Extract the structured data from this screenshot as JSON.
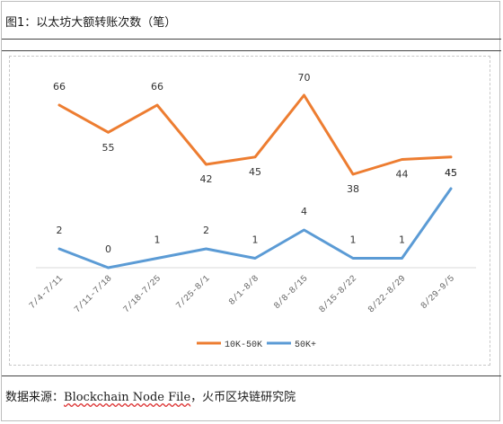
{
  "header": {
    "title": "图1：以太坊大额转账次数（笔）"
  },
  "footer": {
    "source_prefix": "数据来源：",
    "source_name": "Blockchain Node File",
    "source_suffix": "，火币区块链研究院"
  },
  "chart_data": {
    "type": "line",
    "title": "图1：以太坊大额转账次数（笔）",
    "xlabel": "",
    "ylabel": "",
    "categories": [
      "7/4-7/11",
      "7/11-7/18",
      "7/18-7/25",
      "7/25-8/1",
      "8/1-8/8",
      "8/8-8/15",
      "8/15-8/22",
      "8/22-8/29",
      "8/29-9/5"
    ],
    "series": [
      {
        "name": "10K-50K",
        "values": [
          66,
          55,
          66,
          42,
          45,
          70,
          38,
          44,
          45
        ],
        "color": "#ED7D31"
      },
      {
        "name": "50K+",
        "values": [
          2,
          0,
          1,
          2,
          1,
          4,
          1,
          1,
          45
        ],
        "color": "#5B9BD5"
      }
    ],
    "data_labels": {
      "10K-50K": [
        "66",
        "55",
        "66",
        "42",
        "45",
        "70",
        "38",
        "44",
        "45"
      ],
      "50K+": [
        "2",
        "0",
        "1",
        "2",
        "1",
        "4",
        "1",
        "1",
        "45"
      ]
    },
    "legend_position": "bottom",
    "grid": false
  }
}
